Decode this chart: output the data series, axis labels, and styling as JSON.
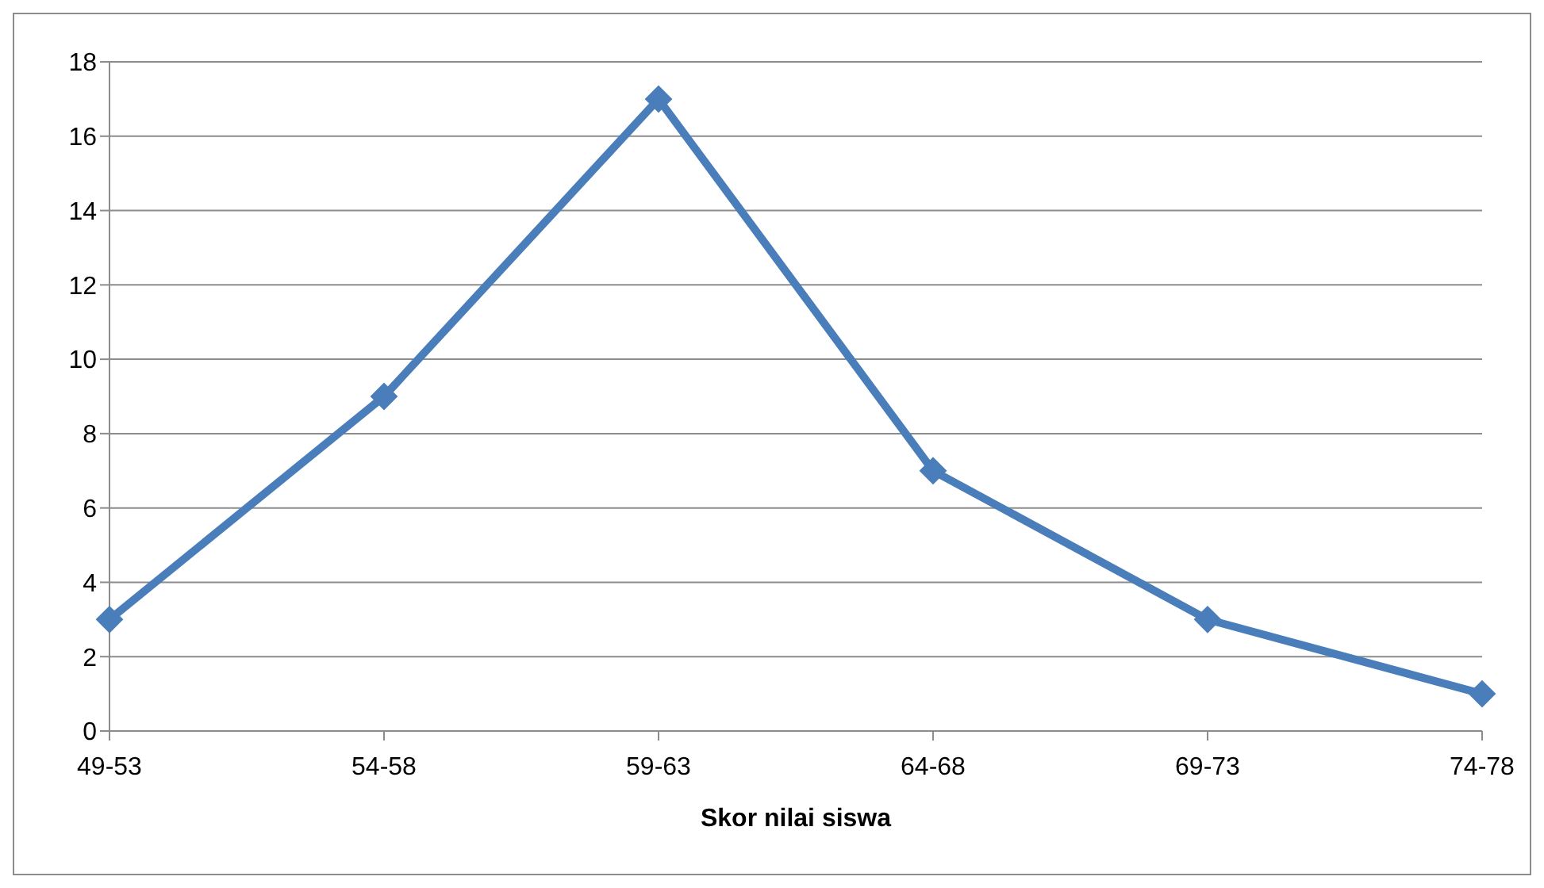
{
  "chart_data": {
    "type": "line",
    "xlabel": "Skor nilai siswa",
    "categories": [
      "49-53",
      "54-58",
      "59-63",
      "64-68",
      "69-73",
      "74-78"
    ],
    "series": [
      {
        "color": "#4a7ebb",
        "values": [
          3,
          9,
          17,
          7,
          3,
          1
        ]
      }
    ],
    "ylim": [
      0,
      18
    ],
    "yticks": [
      0,
      2,
      4,
      6,
      8,
      10,
      12,
      14,
      16,
      18
    ],
    "grid": "y",
    "legend": false,
    "marker": "diamond",
    "line_style": "solid"
  }
}
